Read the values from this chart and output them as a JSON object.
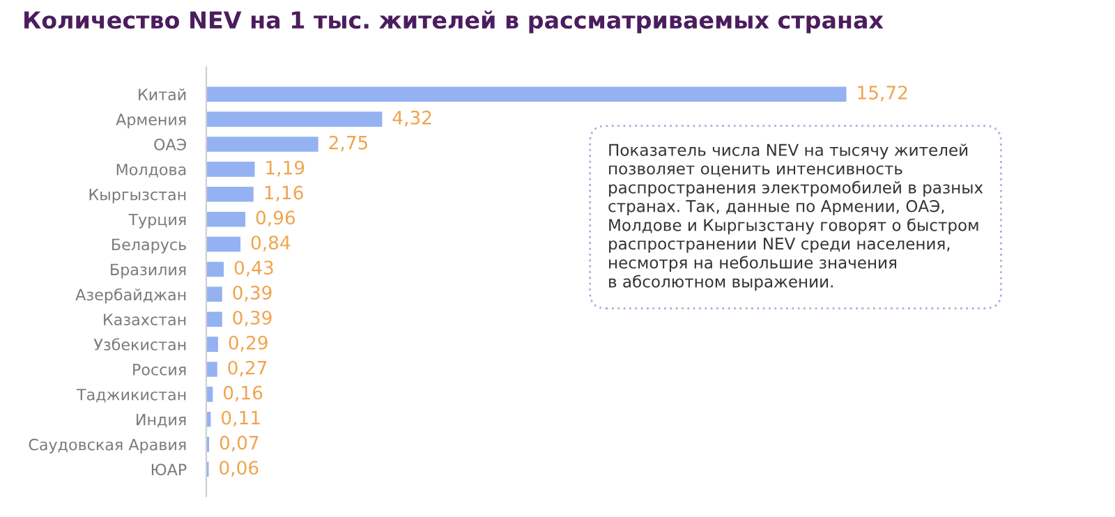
{
  "chart_data": {
    "type": "bar",
    "orientation": "horizontal",
    "title": "Количество NEV на 1 тыс. жителей в рассматриваемых странах",
    "categories": [
      "Китай",
      "Армения",
      "ОАЭ",
      "Молдова",
      "Кыргызстан",
      "Турция",
      "Беларусь",
      "Бразилия",
      "Азербайджан",
      "Казахстан",
      "Узбекистан",
      "Россия",
      "Таджикистан",
      "Индия",
      "Саудовская Аравия",
      "ЮАР"
    ],
    "values": [
      15.72,
      4.32,
      2.75,
      1.19,
      1.16,
      0.96,
      0.84,
      0.43,
      0.39,
      0.39,
      0.29,
      0.27,
      0.16,
      0.11,
      0.07,
      0.06
    ],
    "value_labels": [
      "15,72",
      "4,32",
      "2,75",
      "1,19",
      "1,16",
      "0,96",
      "0,84",
      "0,43",
      "0,39",
      "0,39",
      "0,29",
      "0,27",
      "0,16",
      "0,11",
      "0,07",
      "0,06"
    ],
    "color": "#94b2f2",
    "annotations": [
      "Показатель числа NEV на тысячу жителей\nпозволяет оценить интенсивность\nраспространения электромобилей в разных\nстранах. Так, данные по Армении, ОАЭ,\nМолдове и Кыргызстану говорят о быстром\nраспространении NEV среди населения,\nнесмотря на небольшие значения\nв абсолютном выражении."
    ],
    "grid": false,
    "legend": false
  }
}
